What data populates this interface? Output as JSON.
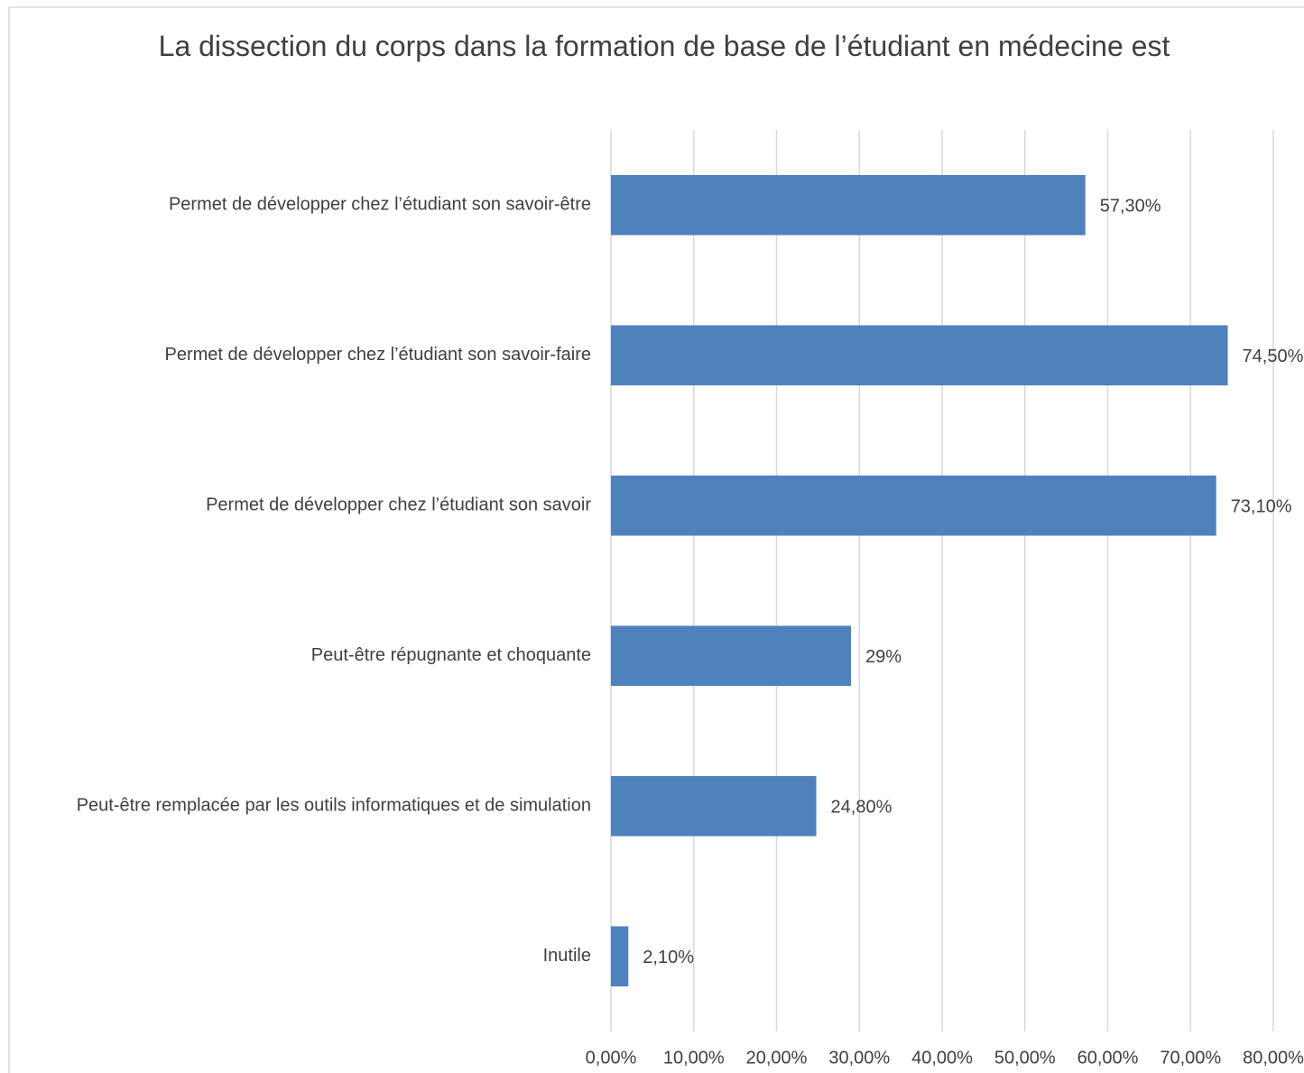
{
  "chart_data": {
    "type": "bar",
    "orientation": "horizontal",
    "title": "La dissection du corps dans la formation de base de l’étudiant en médecine est",
    "categories": [
      "Permet de développer chez l’étudiant son savoir-être",
      "Permet de développer chez l’étudiant son savoir-faire",
      "Permet de développer chez l’étudiant son savoir",
      "Peut-être répugnante et choquante",
      "Peut-être remplacée par les outils informatiques et de simulation",
      "Inutile"
    ],
    "values": [
      57.3,
      74.5,
      73.1,
      29,
      24.8,
      2.1
    ],
    "value_labels": [
      "57,30%",
      "74,50%",
      "73,10%",
      "29%",
      "24,80%",
      "2,10%"
    ],
    "color": "#4f81bd",
    "xlim": [
      0,
      80
    ],
    "xticks": [
      {
        "value": 0,
        "label": "0,00%"
      },
      {
        "value": 10,
        "label": "10,00%"
      },
      {
        "value": 20,
        "label": "20,00%"
      },
      {
        "value": 30,
        "label": "30,00%"
      },
      {
        "value": 40,
        "label": "40,00%"
      },
      {
        "value": 50,
        "label": "50,00%"
      },
      {
        "value": 60,
        "label": "60,00%"
      },
      {
        "value": 70,
        "label": "70,00%"
      },
      {
        "value": 80,
        "label": "80,00%"
      }
    ],
    "grid": true
  }
}
